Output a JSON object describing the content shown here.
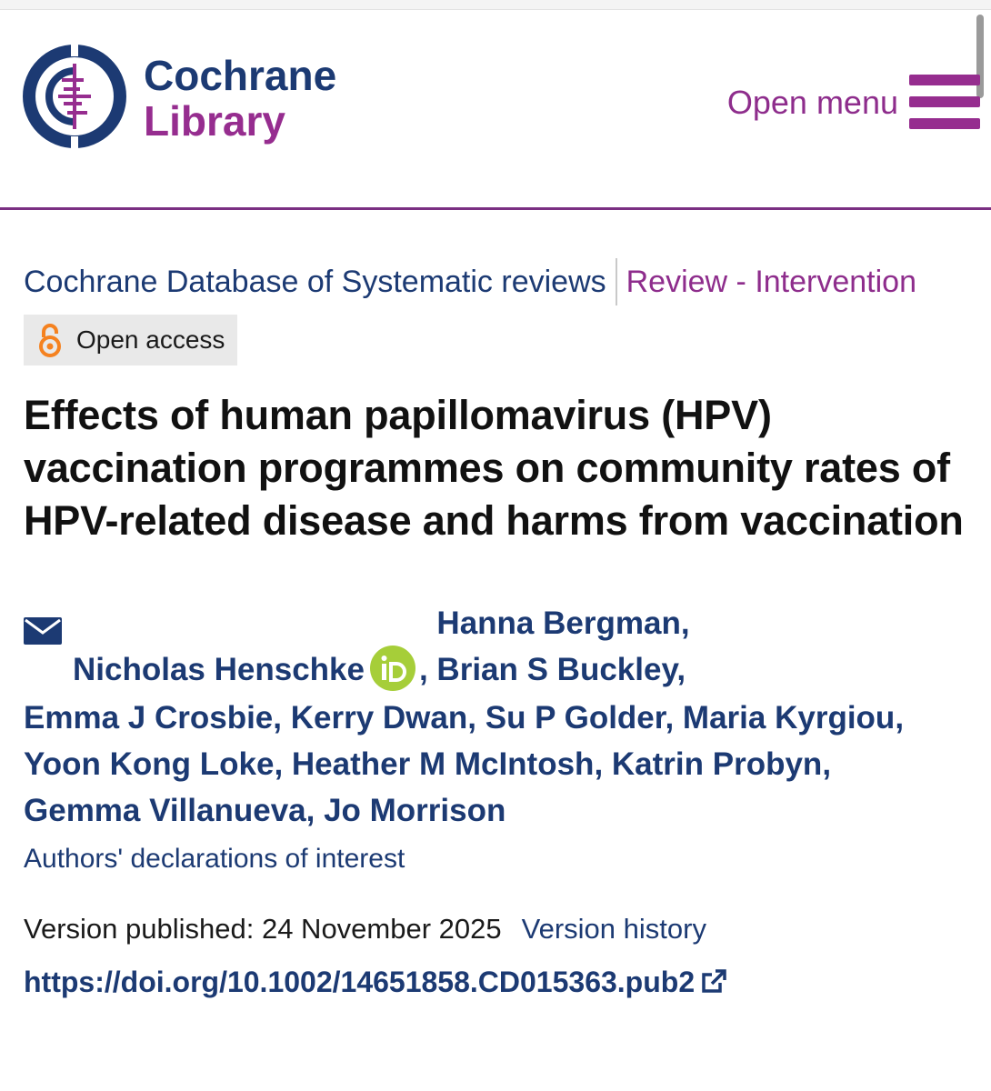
{
  "header": {
    "logo_line1": "Cochrane",
    "logo_line2": "Library",
    "menu_label": "Open menu"
  },
  "colors": {
    "navy": "#1c3a73",
    "purple": "#962d8f",
    "orcid_green": "#a6ce39",
    "open_access_orange": "#f58220",
    "badge_bg": "#e9e9e9"
  },
  "breadcrumb": {
    "database": "Cochrane Database of Systematic reviews",
    "review_type": "Review - Intervention"
  },
  "badge": {
    "icon": "open-access-lock-icon",
    "label": "Open access"
  },
  "article": {
    "title": "Effects of human papillomavirus (HPV) vaccination programmes on community rates of HPV-related disease and harms from vaccination"
  },
  "authors": {
    "contact_icon": "envelope-icon",
    "orcid_icon": "orcid-icon",
    "list": [
      "Nicholas Henschke",
      "Hanna Bergman",
      "Brian S Buckley",
      "Emma J Crosbie",
      "Kerry Dwan",
      "Su P Golder",
      "Maria Kyrgiou",
      "Yoon Kong Loke",
      "Heather M McIntosh",
      "Katrin Probyn",
      "Gemma Villanueva",
      "Jo Morrison"
    ],
    "declarations_link": "Authors' declarations of interest"
  },
  "version": {
    "label": "Version published: 24 November 2025",
    "history_link": "Version history"
  },
  "doi": {
    "url": "https://doi.org/10.1002/14651858.CD015363.pub2",
    "icon": "external-link-icon"
  }
}
